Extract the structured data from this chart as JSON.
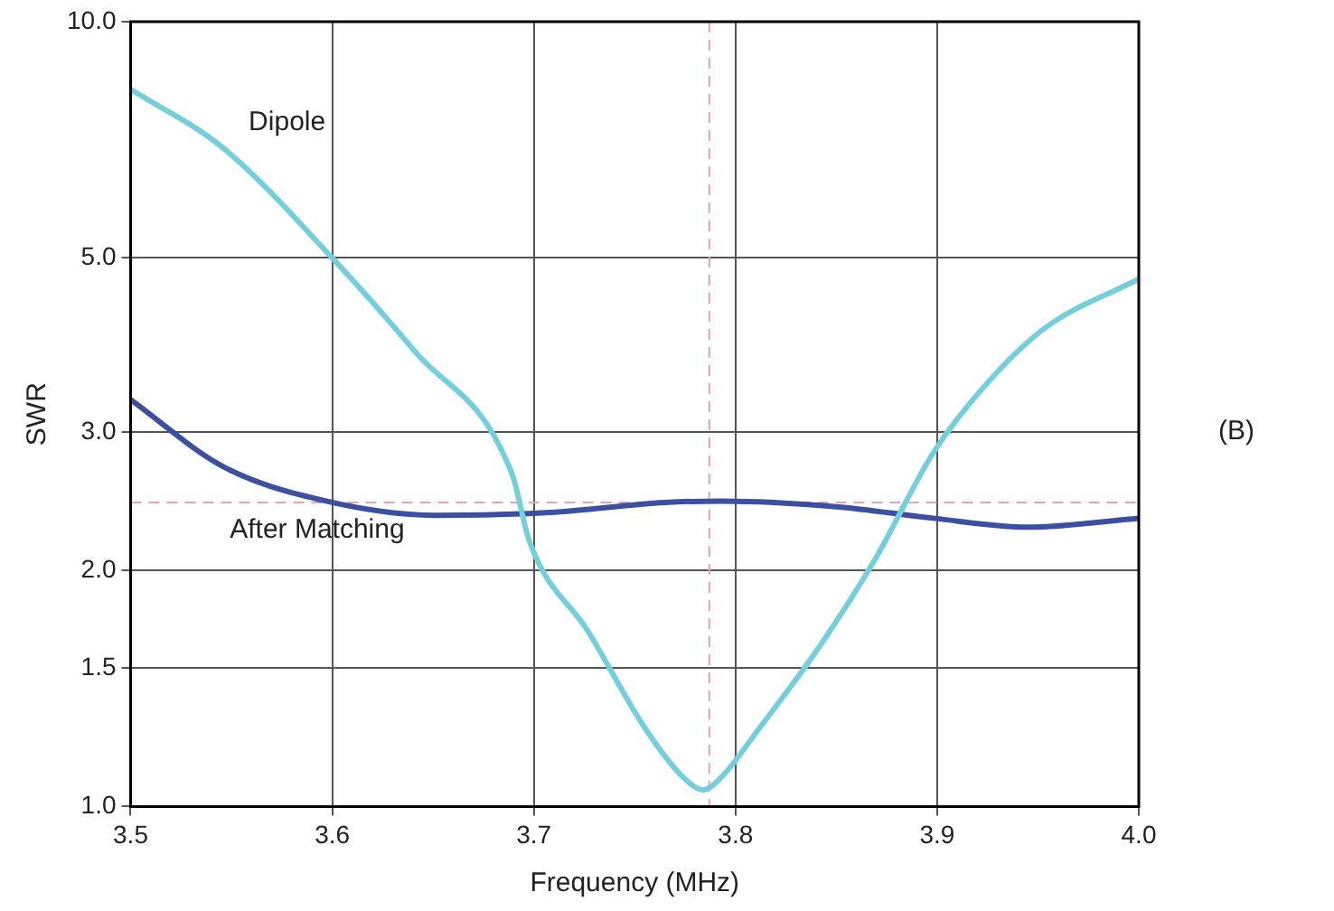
{
  "chart_data": {
    "type": "line",
    "xlabel": "Frequency (MHz)",
    "ylabel": "SWR",
    "xlim": [
      3.5,
      4.0
    ],
    "xticks": [
      {
        "value": 3.5,
        "label": "3.5"
      },
      {
        "value": 3.6,
        "label": "3.6"
      },
      {
        "value": 3.7,
        "label": "3.7"
      },
      {
        "value": 3.8,
        "label": "3.8"
      },
      {
        "value": 3.9,
        "label": "3.9"
      },
      {
        "value": 4.0,
        "label": "4.0"
      }
    ],
    "ylim": [
      1.0,
      10.0
    ],
    "yticks": [
      {
        "value": 1.0,
        "label": "1.0"
      },
      1.5,
      {
        "value": 2.0,
        "label": "2.0"
      },
      {
        "value": 3.0,
        "label": "3.0"
      },
      {
        "value": 5.0,
        "label": "5.0"
      },
      {
        "value": 10.0,
        "label": "10.0"
      }
    ],
    "log": "y",
    "grid": true,
    "legend": false,
    "marker": "none",
    "line_style": "solid",
    "series": [
      {
        "name": "Dipole",
        "color": "#74cfdb",
        "x": [
          3.5,
          3.546,
          3.6,
          3.641,
          3.689,
          3.698,
          3.727,
          3.755,
          3.774,
          3.784,
          3.793,
          3.812,
          3.841,
          3.869,
          3.898,
          3.926,
          3.954,
          4.0
        ],
        "values": [
          8.2,
          6.9,
          5.0,
          3.8,
          2.66,
          2.17,
          1.67,
          1.26,
          1.09,
          1.05,
          1.09,
          1.26,
          1.59,
          2.06,
          2.82,
          3.49,
          4.08,
          4.7
        ]
      },
      {
        "name": "After Matching",
        "color": "#3d4fa0",
        "x": [
          3.5,
          3.546,
          3.594,
          3.651,
          3.708,
          3.765,
          3.793,
          3.85,
          3.898,
          3.945,
          4.0
        ],
        "values": [
          3.3,
          2.71,
          2.46,
          2.35,
          2.37,
          2.44,
          2.45,
          2.41,
          2.33,
          2.27,
          2.33
        ]
      }
    ],
    "ref_lines": [
      {
        "axis": "x",
        "value": 3.787,
        "color": "#e3a3b4",
        "line_style": "dashed"
      },
      {
        "axis": "y",
        "value": 2.44,
        "color": "#e3a3b4",
        "line_style": "dashed"
      }
    ],
    "annotations": [
      "(B)"
    ]
  }
}
